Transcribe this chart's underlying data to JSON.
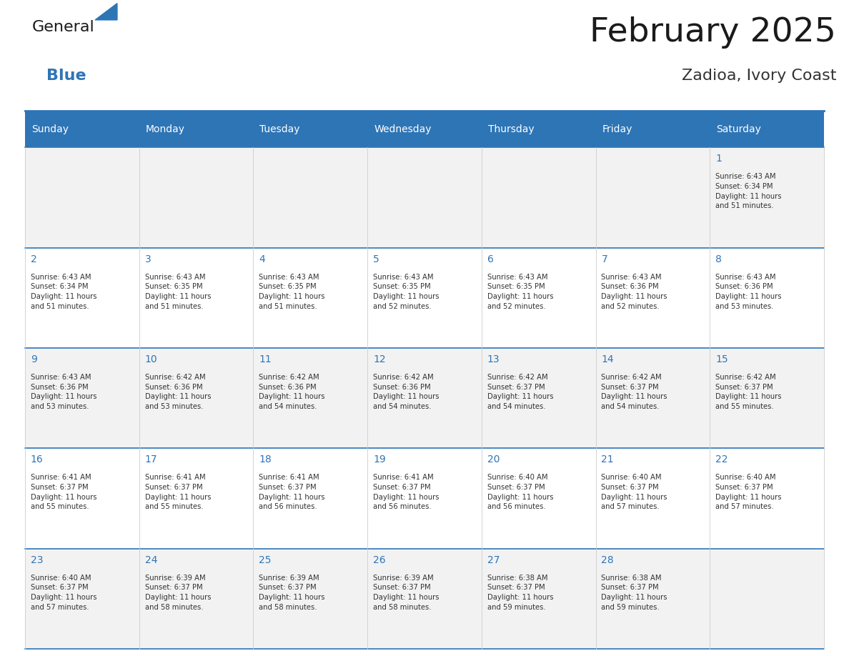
{
  "title": "February 2025",
  "subtitle": "Zadioa, Ivory Coast",
  "header_bg": "#2E75B6",
  "header_text_color": "#FFFFFF",
  "border_color": "#2E75B6",
  "grid_line_color": "#AAAAAA",
  "day_names": [
    "Sunday",
    "Monday",
    "Tuesday",
    "Wednesday",
    "Thursday",
    "Friday",
    "Saturday"
  ],
  "title_color": "#1a1a1a",
  "subtitle_color": "#333333",
  "day_num_color": "#2E75B6",
  "cell_text_color": "#333333",
  "row_colors": [
    "#F2F2F2",
    "#FFFFFF",
    "#F2F2F2",
    "#FFFFFF",
    "#F2F2F2"
  ],
  "logo_general_color": "#1a1a1a",
  "logo_blue_color": "#2E75B6",
  "logo_triangle_color": "#2E75B6",
  "calendar_data": [
    [
      {
        "day": "",
        "info": ""
      },
      {
        "day": "",
        "info": ""
      },
      {
        "day": "",
        "info": ""
      },
      {
        "day": "",
        "info": ""
      },
      {
        "day": "",
        "info": ""
      },
      {
        "day": "",
        "info": ""
      },
      {
        "day": "1",
        "info": "Sunrise: 6:43 AM\nSunset: 6:34 PM\nDaylight: 11 hours\nand 51 minutes."
      }
    ],
    [
      {
        "day": "2",
        "info": "Sunrise: 6:43 AM\nSunset: 6:34 PM\nDaylight: 11 hours\nand 51 minutes."
      },
      {
        "day": "3",
        "info": "Sunrise: 6:43 AM\nSunset: 6:35 PM\nDaylight: 11 hours\nand 51 minutes."
      },
      {
        "day": "4",
        "info": "Sunrise: 6:43 AM\nSunset: 6:35 PM\nDaylight: 11 hours\nand 51 minutes."
      },
      {
        "day": "5",
        "info": "Sunrise: 6:43 AM\nSunset: 6:35 PM\nDaylight: 11 hours\nand 52 minutes."
      },
      {
        "day": "6",
        "info": "Sunrise: 6:43 AM\nSunset: 6:35 PM\nDaylight: 11 hours\nand 52 minutes."
      },
      {
        "day": "7",
        "info": "Sunrise: 6:43 AM\nSunset: 6:36 PM\nDaylight: 11 hours\nand 52 minutes."
      },
      {
        "day": "8",
        "info": "Sunrise: 6:43 AM\nSunset: 6:36 PM\nDaylight: 11 hours\nand 53 minutes."
      }
    ],
    [
      {
        "day": "9",
        "info": "Sunrise: 6:43 AM\nSunset: 6:36 PM\nDaylight: 11 hours\nand 53 minutes."
      },
      {
        "day": "10",
        "info": "Sunrise: 6:42 AM\nSunset: 6:36 PM\nDaylight: 11 hours\nand 53 minutes."
      },
      {
        "day": "11",
        "info": "Sunrise: 6:42 AM\nSunset: 6:36 PM\nDaylight: 11 hours\nand 54 minutes."
      },
      {
        "day": "12",
        "info": "Sunrise: 6:42 AM\nSunset: 6:36 PM\nDaylight: 11 hours\nand 54 minutes."
      },
      {
        "day": "13",
        "info": "Sunrise: 6:42 AM\nSunset: 6:37 PM\nDaylight: 11 hours\nand 54 minutes."
      },
      {
        "day": "14",
        "info": "Sunrise: 6:42 AM\nSunset: 6:37 PM\nDaylight: 11 hours\nand 54 minutes."
      },
      {
        "day": "15",
        "info": "Sunrise: 6:42 AM\nSunset: 6:37 PM\nDaylight: 11 hours\nand 55 minutes."
      }
    ],
    [
      {
        "day": "16",
        "info": "Sunrise: 6:41 AM\nSunset: 6:37 PM\nDaylight: 11 hours\nand 55 minutes."
      },
      {
        "day": "17",
        "info": "Sunrise: 6:41 AM\nSunset: 6:37 PM\nDaylight: 11 hours\nand 55 minutes."
      },
      {
        "day": "18",
        "info": "Sunrise: 6:41 AM\nSunset: 6:37 PM\nDaylight: 11 hours\nand 56 minutes."
      },
      {
        "day": "19",
        "info": "Sunrise: 6:41 AM\nSunset: 6:37 PM\nDaylight: 11 hours\nand 56 minutes."
      },
      {
        "day": "20",
        "info": "Sunrise: 6:40 AM\nSunset: 6:37 PM\nDaylight: 11 hours\nand 56 minutes."
      },
      {
        "day": "21",
        "info": "Sunrise: 6:40 AM\nSunset: 6:37 PM\nDaylight: 11 hours\nand 57 minutes."
      },
      {
        "day": "22",
        "info": "Sunrise: 6:40 AM\nSunset: 6:37 PM\nDaylight: 11 hours\nand 57 minutes."
      }
    ],
    [
      {
        "day": "23",
        "info": "Sunrise: 6:40 AM\nSunset: 6:37 PM\nDaylight: 11 hours\nand 57 minutes."
      },
      {
        "day": "24",
        "info": "Sunrise: 6:39 AM\nSunset: 6:37 PM\nDaylight: 11 hours\nand 58 minutes."
      },
      {
        "day": "25",
        "info": "Sunrise: 6:39 AM\nSunset: 6:37 PM\nDaylight: 11 hours\nand 58 minutes."
      },
      {
        "day": "26",
        "info": "Sunrise: 6:39 AM\nSunset: 6:37 PM\nDaylight: 11 hours\nand 58 minutes."
      },
      {
        "day": "27",
        "info": "Sunrise: 6:38 AM\nSunset: 6:37 PM\nDaylight: 11 hours\nand 59 minutes."
      },
      {
        "day": "28",
        "info": "Sunrise: 6:38 AM\nSunset: 6:37 PM\nDaylight: 11 hours\nand 59 minutes."
      },
      {
        "day": "",
        "info": ""
      }
    ]
  ]
}
